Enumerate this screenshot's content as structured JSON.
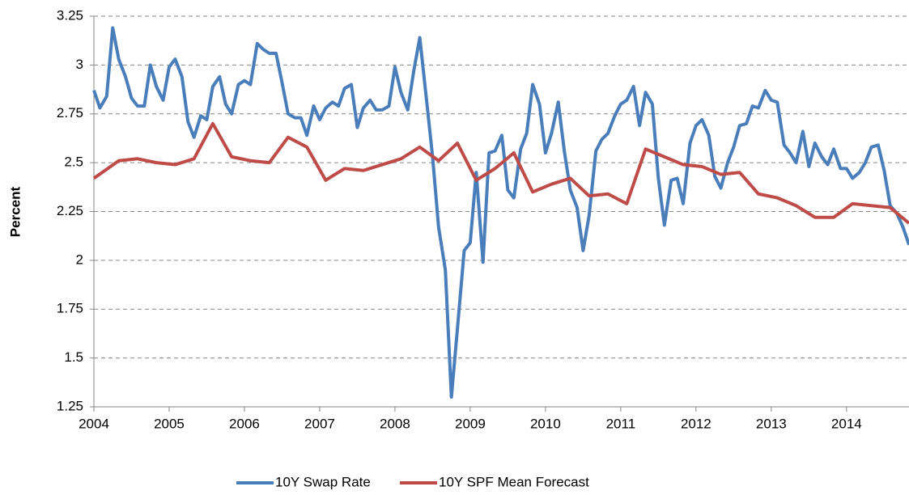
{
  "chart_data": {
    "type": "line",
    "y_label": "Percent",
    "xlim": [
      2004,
      2014.83
    ],
    "xticks": [
      2004,
      2005,
      2006,
      2007,
      2008,
      2009,
      2010,
      2011,
      2012,
      2013,
      2014
    ],
    "ylim": [
      1.25,
      3.25
    ],
    "yticks": [
      1.25,
      1.5,
      1.75,
      2,
      2.25,
      2.5,
      2.75,
      3,
      3.25
    ],
    "grid": true,
    "legend": "bottom",
    "series": [
      {
        "name": "10Y Swap Rate",
        "color": "#4a7ebb",
        "x": [
          2004,
          2004.08,
          2004.17,
          2004.25,
          2004.33,
          2004.42,
          2004.5,
          2004.58,
          2004.67,
          2004.75,
          2004.83,
          2004.92,
          2005,
          2005.08,
          2005.17,
          2005.25,
          2005.33,
          2005.42,
          2005.5,
          2005.58,
          2005.67,
          2005.75,
          2005.83,
          2005.92,
          2006,
          2006.08,
          2006.17,
          2006.25,
          2006.33,
          2006.42,
          2006.5,
          2006.58,
          2006.67,
          2006.75,
          2006.83,
          2006.92,
          2007,
          2007.08,
          2007.17,
          2007.25,
          2007.33,
          2007.42,
          2007.5,
          2007.58,
          2007.67,
          2007.75,
          2007.83,
          2007.92,
          2008,
          2008.08,
          2008.17,
          2008.25,
          2008.33,
          2008.42,
          2008.5,
          2008.58,
          2008.67,
          2008.75,
          2008.83,
          2008.92,
          2009,
          2009.08,
          2009.17,
          2009.25,
          2009.33,
          2009.42,
          2009.5,
          2009.58,
          2009.67,
          2009.75,
          2009.83,
          2009.92,
          2010,
          2010.08,
          2010.17,
          2010.25,
          2010.33,
          2010.42,
          2010.5,
          2010.58,
          2010.67,
          2010.75,
          2010.83,
          2010.92,
          2011,
          2011.08,
          2011.17,
          2011.25,
          2011.33,
          2011.42,
          2011.5,
          2011.58,
          2011.67,
          2011.75,
          2011.83,
          2011.92,
          2012,
          2012.08,
          2012.17,
          2012.25,
          2012.33,
          2012.42,
          2012.5,
          2012.58,
          2012.67,
          2012.75,
          2012.83,
          2012.92,
          2013,
          2013.08,
          2013.17,
          2013.25,
          2013.33,
          2013.42,
          2013.5,
          2013.58,
          2013.67,
          2013.75,
          2013.83,
          2013.92,
          2014,
          2014.08,
          2014.17,
          2014.25,
          2014.33,
          2014.42,
          2014.5,
          2014.58,
          2014.67,
          2014.75,
          2014.83
        ],
        "values": [
          2.87,
          2.78,
          2.84,
          3.19,
          3.03,
          2.94,
          2.83,
          2.79,
          2.79,
          3.0,
          2.89,
          2.82,
          2.99,
          3.03,
          2.94,
          2.71,
          2.63,
          2.74,
          2.72,
          2.89,
          2.94,
          2.8,
          2.75,
          2.9,
          2.92,
          2.9,
          3.11,
          3.08,
          3.06,
          3.06,
          2.91,
          2.75,
          2.73,
          2.73,
          2.64,
          2.79,
          2.72,
          2.78,
          2.81,
          2.79,
          2.88,
          2.9,
          2.68,
          2.78,
          2.82,
          2.77,
          2.77,
          2.79,
          2.99,
          2.86,
          2.77,
          2.97,
          3.14,
          2.82,
          2.53,
          2.17,
          1.95,
          1.3,
          1.65,
          2.05,
          2.09,
          2.45,
          1.99,
          2.55,
          2.56,
          2.64,
          2.36,
          2.32,
          2.57,
          2.65,
          2.9,
          2.8,
          2.55,
          2.65,
          2.81,
          2.56,
          2.36,
          2.27,
          2.05,
          2.23,
          2.56,
          2.62,
          2.65,
          2.74,
          2.8,
          2.82,
          2.89,
          2.69,
          2.86,
          2.8,
          2.42,
          2.18,
          2.41,
          2.42,
          2.29,
          2.6,
          2.69,
          2.72,
          2.64,
          2.43,
          2.37,
          2.5,
          2.58,
          2.69,
          2.7,
          2.79,
          2.78,
          2.87,
          2.82,
          2.81,
          2.59,
          2.55,
          2.5,
          2.66,
          2.48,
          2.6,
          2.53,
          2.49,
          2.57,
          2.47,
          2.47,
          2.42,
          2.45,
          2.5,
          2.58,
          2.59,
          2.46,
          2.28,
          2.24,
          2.17,
          2.08
        ]
      },
      {
        "name": "10Y SPF Mean Forecast",
        "color": "#be4b48",
        "x": [
          2004,
          2004.33,
          2004.58,
          2004.83,
          2005.08,
          2005.33,
          2005.58,
          2005.83,
          2006.08,
          2006.33,
          2006.58,
          2006.83,
          2007.08,
          2007.33,
          2007.58,
          2007.83,
          2008.08,
          2008.33,
          2008.58,
          2008.83,
          2009.08,
          2009.33,
          2009.58,
          2009.83,
          2010.08,
          2010.33,
          2010.58,
          2010.83,
          2011.08,
          2011.33,
          2011.58,
          2011.83,
          2012.08,
          2012.33,
          2012.58,
          2012.83,
          2013.08,
          2013.33,
          2013.58,
          2013.83,
          2014.08,
          2014.33,
          2014.58,
          2014.83
        ],
        "values": [
          2.42,
          2.51,
          2.52,
          2.5,
          2.49,
          2.52,
          2.7,
          2.53,
          2.51,
          2.5,
          2.63,
          2.58,
          2.41,
          2.47,
          2.46,
          2.49,
          2.52,
          2.58,
          2.51,
          2.6,
          2.41,
          2.47,
          2.55,
          2.35,
          2.39,
          2.42,
          2.33,
          2.34,
          2.29,
          2.57,
          2.53,
          2.49,
          2.48,
          2.44,
          2.45,
          2.34,
          2.32,
          2.28,
          2.22,
          2.22,
          2.29,
          2.28,
          2.27,
          2.19
        ]
      }
    ]
  }
}
